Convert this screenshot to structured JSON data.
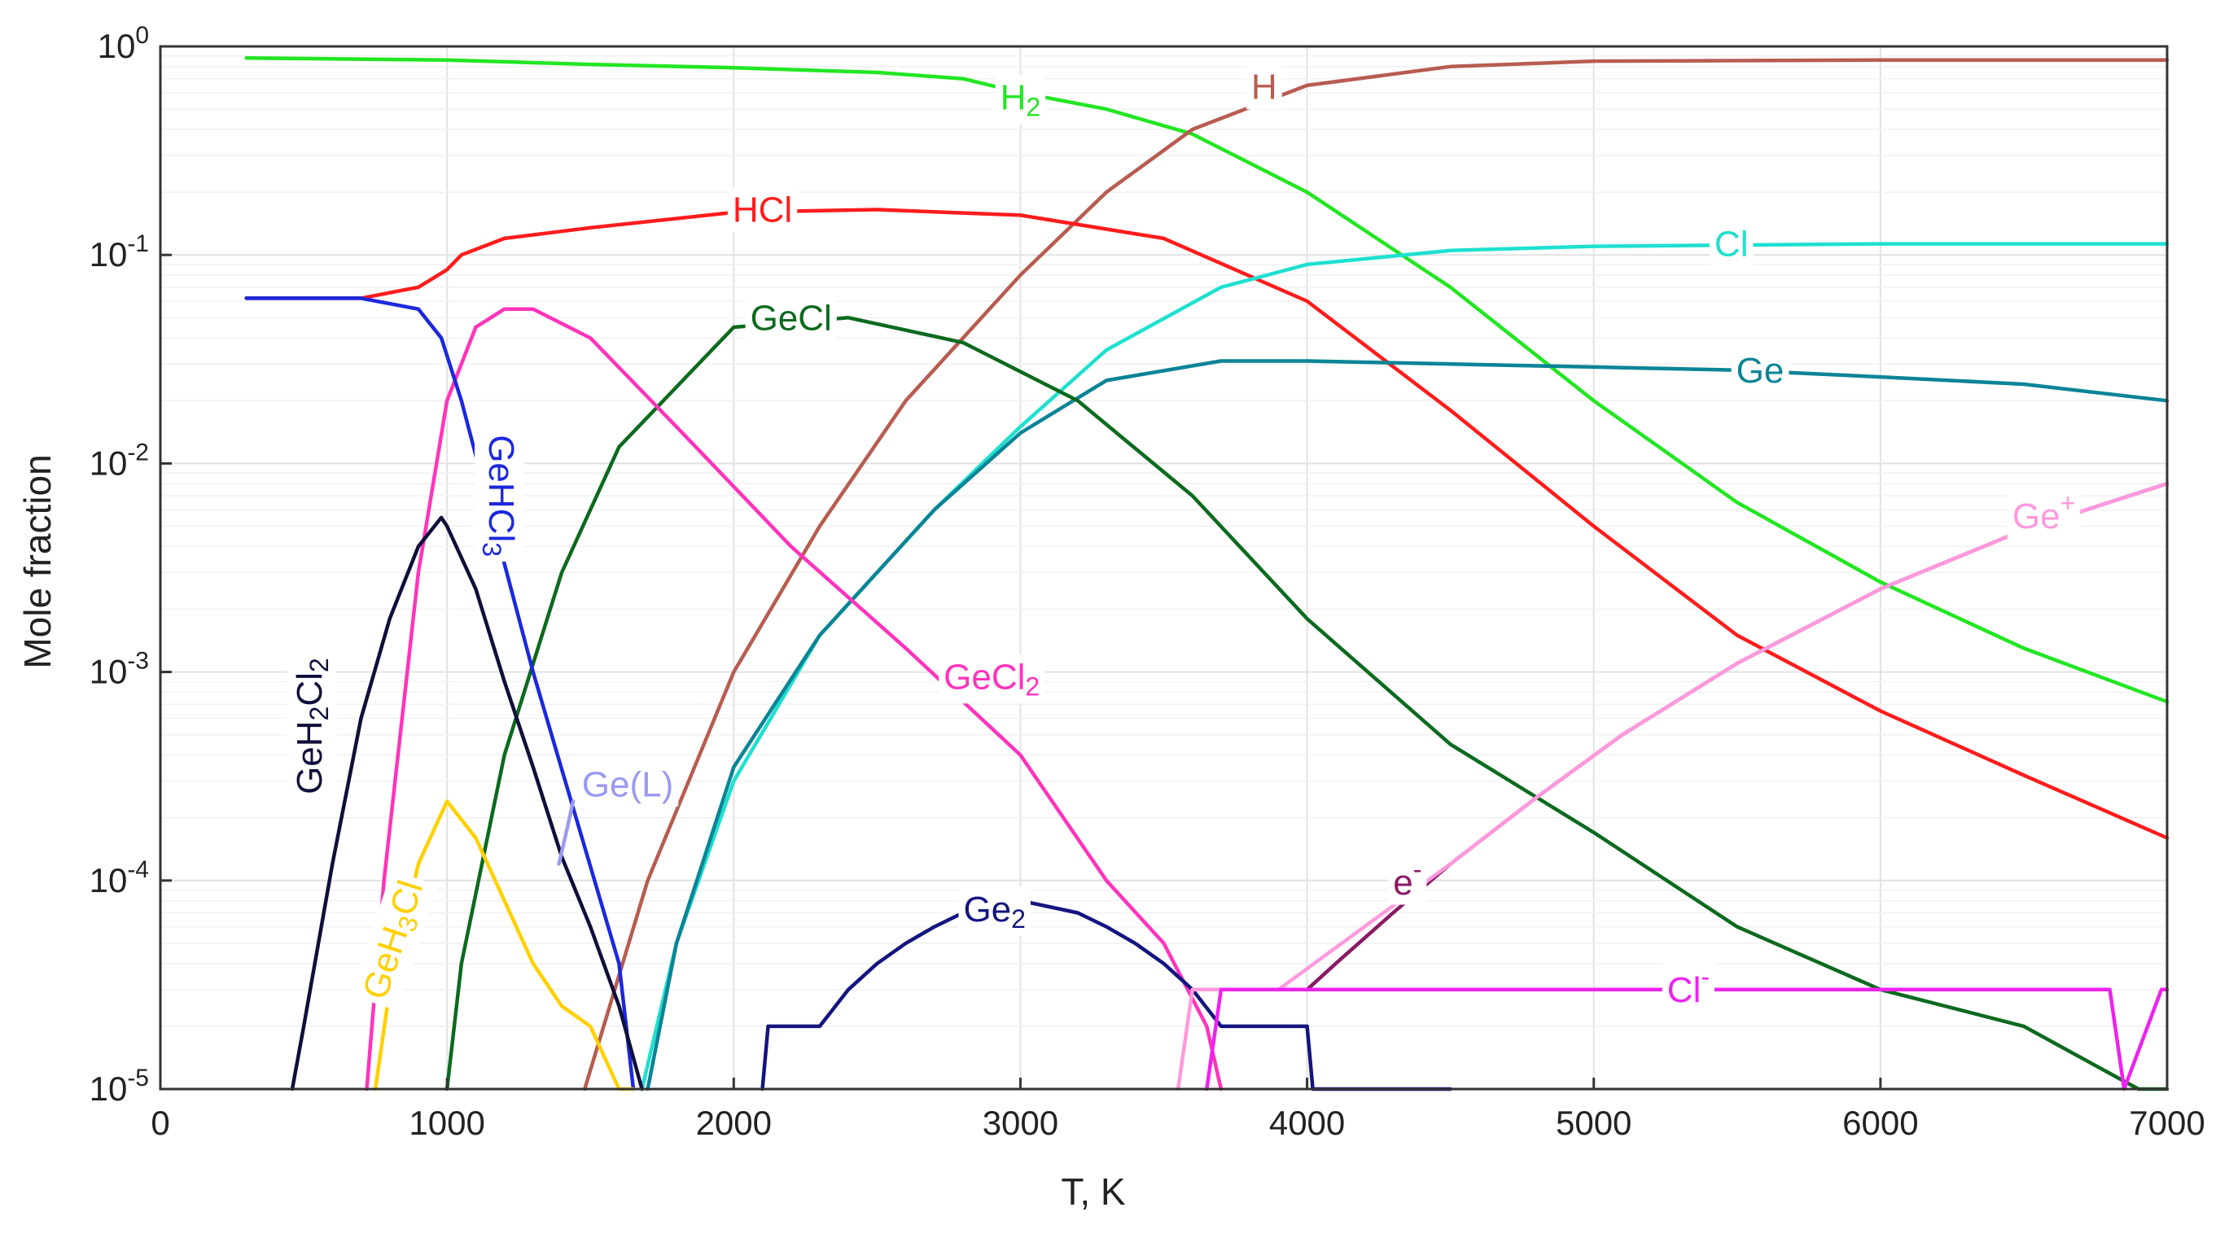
{
  "chart_data": {
    "type": "line",
    "xlabel": "T, K",
    "ylabel": "Mole fraction",
    "xlim": [
      0,
      7000
    ],
    "ylim": [
      1e-05,
      1
    ],
    "yscale": "log",
    "grid": true,
    "x_ticks": [
      0,
      1000,
      2000,
      3000,
      4000,
      5000,
      6000,
      7000
    ],
    "x_tick_labels": [
      "0",
      "1000",
      "2000",
      "3000",
      "4000",
      "5000",
      "6000",
      "7000"
    ],
    "y_ticks": [
      1e-05,
      0.0001,
      0.001,
      0.01,
      0.1,
      1
    ],
    "y_tick_labels": [
      {
        "base": "10",
        "exp": "-5"
      },
      {
        "base": "10",
        "exp": "-4"
      },
      {
        "base": "10",
        "exp": "-3"
      },
      {
        "base": "10",
        "exp": "-2"
      },
      {
        "base": "10",
        "exp": "-1"
      },
      {
        "base": "10",
        "exp": "0"
      }
    ],
    "series": [
      {
        "name": "H2",
        "label": [
          {
            "t": "H"
          },
          {
            "t": "2",
            "sub": true
          }
        ],
        "color": "#22e622",
        "label_at": [
          3000,
          0.57
        ],
        "x": [
          300,
          1000,
          1500,
          2000,
          2500,
          2800,
          3000,
          3300,
          3600,
          4000,
          4500,
          5000,
          5500,
          6000,
          6500,
          7000
        ],
        "y": [
          0.88,
          0.86,
          0.82,
          0.79,
          0.75,
          0.7,
          0.6,
          0.5,
          0.38,
          0.2,
          0.07,
          0.02,
          0.0065,
          0.0027,
          0.0013,
          0.00072
        ]
      },
      {
        "name": "H",
        "label": [
          {
            "t": "H"
          }
        ],
        "color": "#b85c50",
        "label_at": [
          3850,
          0.64
        ],
        "x": [
          1480,
          1700,
          2000,
          2300,
          2600,
          3000,
          3300,
          3600,
          4000,
          4500,
          5000,
          6000,
          7000
        ],
        "y": [
          1e-05,
          0.0001,
          0.001,
          0.005,
          0.02,
          0.08,
          0.2,
          0.4,
          0.65,
          0.8,
          0.85,
          0.86,
          0.86
        ]
      },
      {
        "name": "HCl",
        "label": [
          {
            "t": "HCl"
          }
        ],
        "color": "#ff1c1c",
        "label_at": [
          2100,
          0.165
        ],
        "x": [
          300,
          700,
          900,
          1000,
          1050,
          1200,
          1500,
          2000,
          2500,
          3000,
          3500,
          4000,
          4500,
          5000,
          5500,
          6000,
          6500,
          7000
        ],
        "y": [
          0.062,
          0.062,
          0.07,
          0.085,
          0.1,
          0.12,
          0.135,
          0.16,
          0.165,
          0.155,
          0.12,
          0.06,
          0.018,
          0.005,
          0.0015,
          0.00065,
          0.00032,
          0.00016
        ]
      },
      {
        "name": "Cl",
        "label": [
          {
            "t": "Cl"
          }
        ],
        "color": "#1ee0d0",
        "label_at": [
          5480,
          0.113
        ],
        "x": [
          1680,
          1800,
          2000,
          2300,
          2700,
          3000,
          3300,
          3700,
          4000,
          4500,
          5000,
          6000,
          7000
        ],
        "y": [
          1e-05,
          5e-05,
          0.0003,
          0.0015,
          0.006,
          0.015,
          0.035,
          0.07,
          0.09,
          0.105,
          0.11,
          0.113,
          0.113
        ]
      },
      {
        "name": "Ge",
        "label": [
          {
            "t": "Ge"
          }
        ],
        "color": "#0a8496",
        "label_at": [
          5580,
          0.028
        ],
        "x": [
          1700,
          1800,
          2000,
          2300,
          2700,
          3000,
          3300,
          3700,
          4000,
          4500,
          5000,
          5500,
          6000,
          6500,
          7000
        ],
        "y": [
          1e-05,
          5e-05,
          0.00035,
          0.0015,
          0.006,
          0.014,
          0.025,
          0.031,
          0.031,
          0.03,
          0.029,
          0.028,
          0.026,
          0.024,
          0.02
        ]
      },
      {
        "name": "GeCl",
        "label": [
          {
            "t": "GeCl"
          }
        ],
        "color": "#0c6a1e",
        "label_at": [
          2200,
          0.05
        ],
        "x": [
          1000,
          1050,
          1200,
          1400,
          1600,
          2000,
          2400,
          2800,
          3200,
          3600,
          4000,
          4500,
          5000,
          5500,
          6000,
          6500,
          6900,
          7000
        ],
        "y": [
          1e-05,
          4e-05,
          0.0004,
          0.003,
          0.012,
          0.045,
          0.05,
          0.038,
          0.02,
          0.007,
          0.0018,
          0.00045,
          0.00017,
          6e-05,
          3e-05,
          2e-05,
          1e-05,
          1e-05
        ]
      },
      {
        "name": "GeCl2",
        "label": [
          {
            "t": "GeCl"
          },
          {
            "t": "2",
            "sub": true
          }
        ],
        "color": "#ff33bb",
        "label_at": [
          2900,
          0.00095
        ],
        "x": [
          720,
          780,
          900,
          1000,
          1100,
          1200,
          1300,
          1500,
          1800,
          2200,
          2600,
          3000,
          3300,
          3500,
          3650,
          3700
        ],
        "y": [
          1e-05,
          0.0001,
          0.003,
          0.02,
          0.045,
          0.055,
          0.055,
          0.04,
          0.015,
          0.004,
          0.0013,
          0.0004,
          0.0001,
          5e-05,
          2e-05,
          1e-05
        ]
      },
      {
        "name": "GeHCl3",
        "label": [
          {
            "t": "GeHCl"
          },
          {
            "t": "3",
            "sub": true
          }
        ],
        "color": "#1c28dd",
        "label_at": [
          1190,
          0.007
        ],
        "label_rot": 90,
        "x": [
          300,
          700,
          900,
          980,
          1050,
          1150,
          1300,
          1450,
          1600,
          1650
        ],
        "y": [
          0.062,
          0.062,
          0.055,
          0.04,
          0.02,
          0.006,
          0.001,
          0.0002,
          4e-05,
          1e-05
        ]
      },
      {
        "name": "GeH2Cl2",
        "label": [
          {
            "t": "GeH"
          },
          {
            "t": "2",
            "sub": true
          },
          {
            "t": "Cl"
          },
          {
            "t": "2",
            "sub": true
          }
        ],
        "color": "#0f0f3a",
        "label_at": [
          520,
          0.00055
        ],
        "label_rot": -90,
        "x": [
          460,
          500,
          600,
          700,
          800,
          900,
          980,
          1000,
          1100,
          1200,
          1300,
          1400,
          1500,
          1600,
          1680
        ],
        "y": [
          1e-05,
          2e-05,
          0.00012,
          0.0006,
          0.0018,
          0.004,
          0.0055,
          0.005,
          0.0025,
          0.0009,
          0.00035,
          0.00013,
          6e-05,
          2.5e-05,
          1e-05
        ]
      },
      {
        "name": "GeH3Cl",
        "label": [
          {
            "t": "GeH"
          },
          {
            "t": "3",
            "sub": true
          },
          {
            "t": "Cl"
          }
        ],
        "color": "#ffd000",
        "label_at": [
          810,
          5.2e-05
        ],
        "label_rot": -72,
        "x": [
          750,
          800,
          900,
          1000,
          1100,
          1200,
          1300,
          1400,
          1500,
          1600,
          1650
        ],
        "y": [
          1e-05,
          3e-05,
          0.00012,
          0.00024,
          0.00016,
          8e-05,
          4e-05,
          2.5e-05,
          2e-05,
          1e-05,
          1e-05
        ]
      },
      {
        "name": "Ge(L)",
        "label": [
          {
            "t": "Ge(L)"
          }
        ],
        "color": "#9a9af0",
        "label_at": [
          1630,
          0.00029
        ],
        "x": [
          1390,
          1420,
          1440
        ],
        "y": [
          0.00012,
          0.00018,
          0.00024
        ]
      },
      {
        "name": "Ge2",
        "label": [
          {
            "t": "Ge"
          },
          {
            "t": "2",
            "sub": true
          }
        ],
        "color": "#141480",
        "label_at": [
          2910,
          7.3e-05
        ],
        "x": [
          2100,
          2120,
          2300,
          2400,
          2500,
          2600,
          2700,
          2800,
          3000,
          3200,
          3300,
          3400,
          3500,
          3600,
          3700,
          3850,
          4000,
          4020,
          4500
        ],
        "y": [
          1e-05,
          2e-05,
          2e-05,
          3e-05,
          4e-05,
          5e-05,
          6e-05,
          7e-05,
          8e-05,
          7e-05,
          6e-05,
          5e-05,
          4e-05,
          3e-05,
          2e-05,
          2e-05,
          2e-05,
          1e-05,
          1e-05
        ]
      },
      {
        "name": "e-",
        "label": [
          {
            "t": "e"
          },
          {
            "t": "-",
            "sup": true
          }
        ],
        "color": "#8a1a66",
        "label_at": [
          4350,
          9.8e-05
        ],
        "x": [
          4000,
          4100,
          4300,
          4500,
          4800,
          5100,
          5500,
          6000,
          6500,
          7000
        ],
        "y": [
          3e-05,
          4e-05,
          7e-05,
          0.00012,
          0.00025,
          0.0005,
          0.0011,
          0.0025,
          0.0048,
          0.008
        ]
      },
      {
        "name": "Ge+",
        "label": [
          {
            "t": "Ge"
          },
          {
            "t": "+",
            "sup": true
          }
        ],
        "color": "#ff99dd",
        "label_at": [
          6570,
          0.0056
        ],
        "x": [
          3550,
          3600,
          3900,
          4200,
          4500,
          4800,
          5100,
          5500,
          6000,
          6500,
          7000
        ],
        "y": [
          1e-05,
          3e-05,
          3e-05,
          6e-05,
          0.00012,
          0.00025,
          0.0005,
          0.0011,
          0.0025,
          0.0048,
          0.008
        ]
      },
      {
        "name": "Cl-",
        "label": [
          {
            "t": "Cl"
          },
          {
            "t": "-",
            "sup": true
          }
        ],
        "color": "#ee22ee",
        "label_at": [
          5330,
          3e-05
        ],
        "x": [
          3650,
          3700,
          3950,
          4000,
          4500,
          5000,
          5500,
          6000,
          6500,
          6800,
          6850,
          6980,
          7000
        ],
        "y": [
          1e-05,
          3e-05,
          3e-05,
          3e-05,
          3e-05,
          3e-05,
          3e-05,
          3e-05,
          3e-05,
          3e-05,
          1e-05,
          3e-05,
          3e-05
        ]
      }
    ]
  }
}
